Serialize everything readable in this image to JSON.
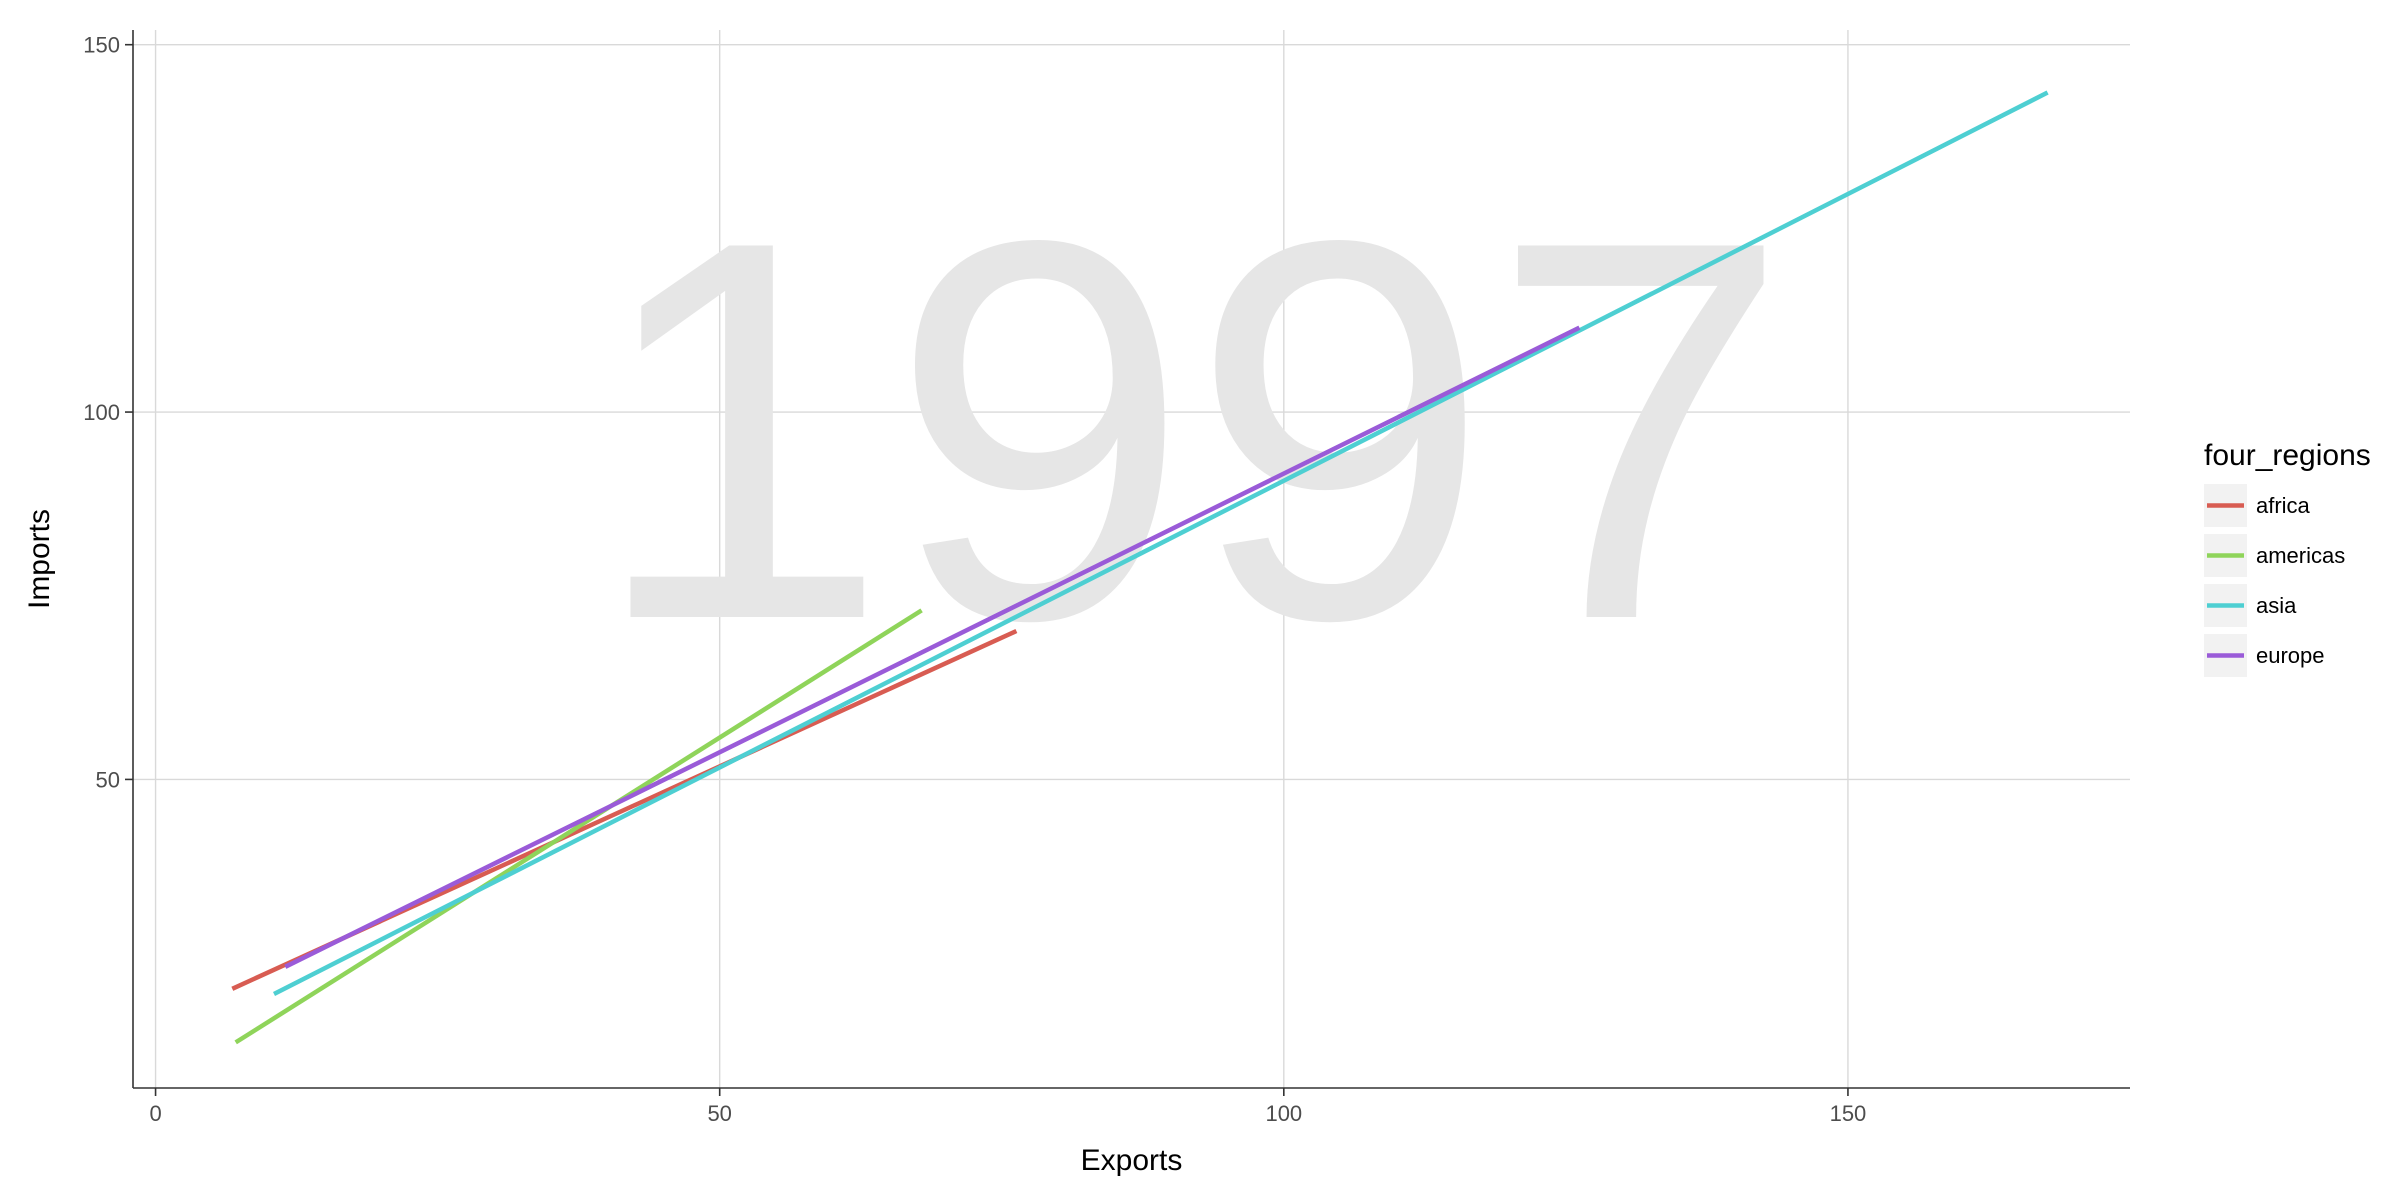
{
  "chart_data": {
    "type": "line",
    "watermark": "1997",
    "xlabel": "Exports",
    "ylabel": "Imports",
    "xlim": [
      -2,
      175
    ],
    "ylim": [
      8,
      152
    ],
    "x_ticks": [
      0,
      50,
      100,
      150
    ],
    "y_ticks": [
      50,
      100,
      150
    ],
    "grid": true,
    "legend": {
      "title": "four_regions",
      "position": "right"
    },
    "series": [
      {
        "name": "africa",
        "color": "#D85C52",
        "points": [
          [
            6.8,
            21.5
          ],
          [
            76.3,
            70.2
          ]
        ]
      },
      {
        "name": "americas",
        "color": "#8FD45A",
        "points": [
          [
            7.1,
            14.2
          ],
          [
            67.9,
            73.0
          ]
        ]
      },
      {
        "name": "asia",
        "color": "#4ECFD2",
        "points": [
          [
            10.5,
            20.8
          ],
          [
            167.7,
            143.5
          ]
        ]
      },
      {
        "name": "europe",
        "color": "#9A5BD8",
        "points": [
          [
            11.5,
            24.5
          ],
          [
            126.2,
            111.5
          ]
        ]
      }
    ]
  }
}
